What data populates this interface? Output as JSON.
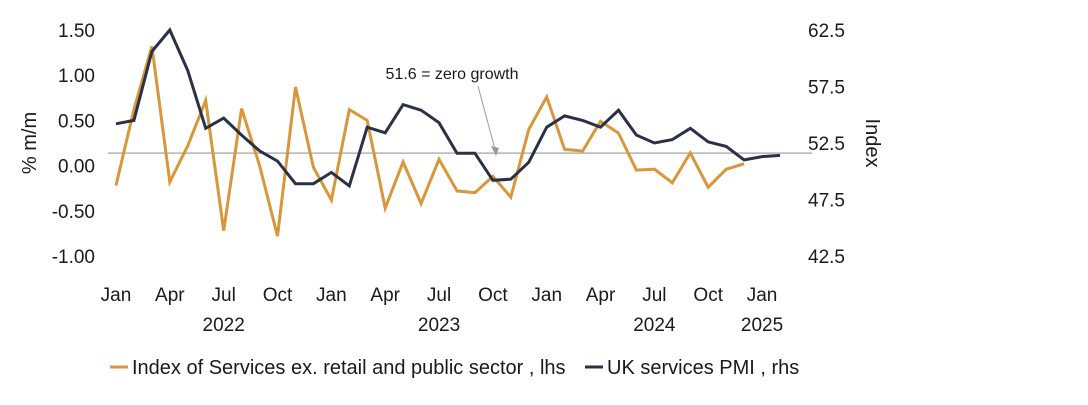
{
  "chart_data": {
    "type": "line",
    "title": "",
    "ylabel_left": "% m/m",
    "ylabel_right": "Index",
    "ylim_left": [
      -1.0,
      1.5
    ],
    "ylim_right": [
      42.5,
      62.5
    ],
    "yticks_left": [
      "1.50",
      "1.00",
      "0.50",
      "0.00",
      "-0.50",
      "-1.00"
    ],
    "ytick_values_left": [
      1.5,
      1.0,
      0.5,
      0.0,
      -0.5,
      -1.0
    ],
    "yticks_right": [
      "62.5",
      "57.5",
      "52.5",
      "47.5",
      "42.5"
    ],
    "ytick_values_right": [
      62.5,
      57.5,
      52.5,
      47.5,
      42.5
    ],
    "x_month_labels": [
      "Jan",
      "Apr",
      "Jul",
      "Oct",
      "Jan",
      "Apr",
      "Jul",
      "Oct",
      "Jan",
      "Apr",
      "Jul",
      "Oct",
      "Jan"
    ],
    "x_month_index": [
      0,
      3,
      6,
      9,
      12,
      15,
      18,
      21,
      24,
      27,
      30,
      33,
      36
    ],
    "x_year_labels": [
      "2022",
      "2023",
      "2024",
      "2025"
    ],
    "x_year_index": [
      6,
      18,
      30,
      36
    ],
    "series": [
      {
        "name": "Index of Services ex. retail and public sector , lhs",
        "axis": "left",
        "color": "#d9963a",
        "start_index": 0,
        "values": [
          -0.22,
          0.62,
          1.32,
          -0.18,
          0.22,
          0.72,
          -0.72,
          0.63,
          0.0,
          -0.78,
          0.87,
          -0.02,
          -0.38,
          0.62,
          0.5,
          -0.47,
          0.04,
          -0.42,
          0.07,
          -0.28,
          -0.3,
          -0.12,
          -0.35,
          0.4,
          0.76,
          0.18,
          0.16,
          0.49,
          0.36,
          -0.05,
          -0.04,
          -0.19,
          0.14,
          -0.24,
          -0.04,
          0.02
        ]
      },
      {
        "name": "UK services PMI , rhs",
        "axis": "right",
        "color": "#2a3147",
        "start_index": 0,
        "values": [
          54.2,
          54.5,
          60.6,
          62.5,
          58.9,
          53.8,
          54.7,
          53.2,
          51.8,
          50.9,
          48.9,
          48.9,
          49.9,
          48.7,
          53.9,
          53.4,
          55.9,
          55.4,
          54.3,
          51.6,
          51.6,
          49.2,
          49.3,
          50.8,
          53.9,
          54.9,
          54.5,
          53.9,
          55.4,
          53.2,
          52.5,
          52.8,
          53.8,
          52.6,
          52.2,
          51.0,
          51.3,
          51.4
        ]
      }
    ],
    "reference_line": {
      "axis": "right",
      "value": 51.6
    },
    "annotation": "51.6 = zero growth",
    "legend_position": "bottom"
  }
}
